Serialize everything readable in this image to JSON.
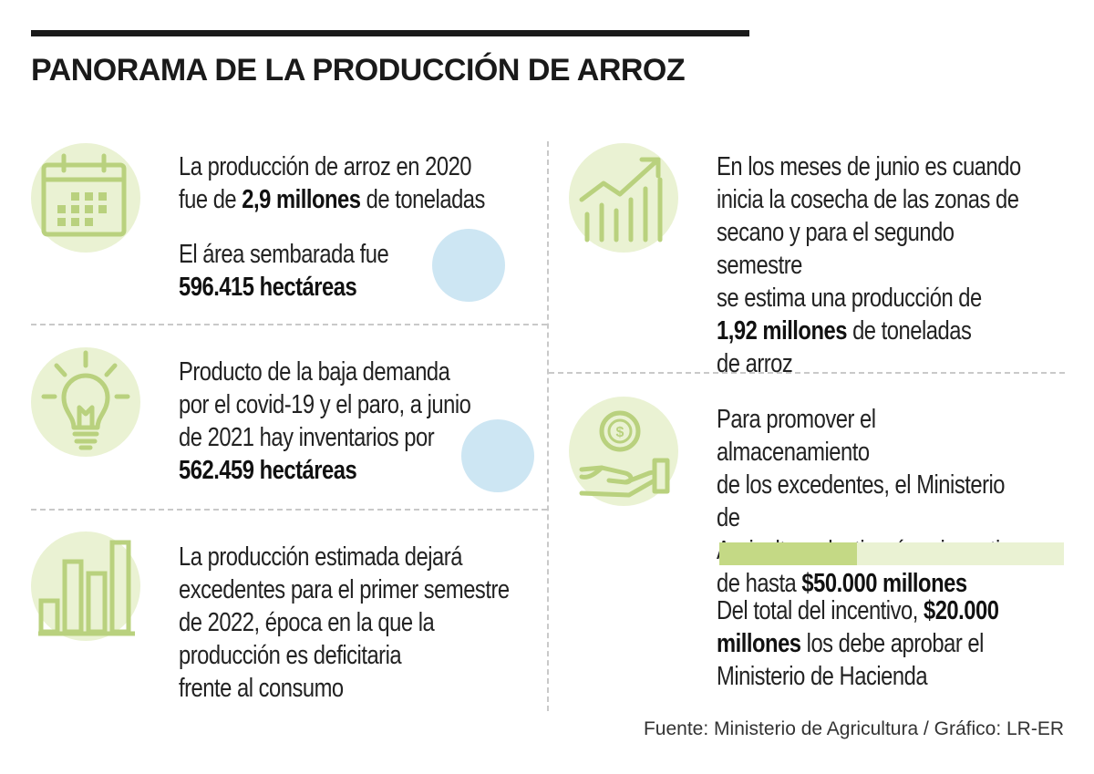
{
  "title": "PANORAMA DE LA PRODUCCIÓN DE ARROZ",
  "accent_colors": {
    "icon_background": "#eaf2d3",
    "icon_stroke": "#b9d17e",
    "blue_dot": "#cde6f3",
    "bar_fill": "#c4d985",
    "bar_track": "#eaf2d3"
  },
  "items": [
    {
      "icon": "calendar-icon",
      "line1": "La producción de arroz en 2020",
      "line2_pre": "fue de ",
      "line2_bold": "2,9 millones",
      "line2_post": " de toneladas",
      "line3": "El área sembarada fue",
      "line4_bold": "596.415 hectáreas"
    },
    {
      "icon": "lightbulb-icon",
      "line1": "Producto de la baja demanda",
      "line2": "por el covid-19 y el paro, a junio",
      "line3": "de 2021 hay inventarios por",
      "line4_bold": "562.459 hectáreas"
    },
    {
      "icon": "bar-chart-icon",
      "line1": "La producción estimada dejará",
      "line2": "excedentes para el primer semestre",
      "line3": "de 2022, época en la que la",
      "line4": "producción es deficitaria",
      "line5": "frente al consumo"
    },
    {
      "icon": "trend-up-chart-icon",
      "line1": "En los meses de junio es cuando",
      "line2": "inicia la cosecha de las zonas de",
      "line3": "secano y para el segundo semestre",
      "line4": "se estima una producción de",
      "line5_bold": "1,92 millones",
      "line5_post": " de toneladas",
      "line6": "de arroz"
    },
    {
      "icon": "hand-coin-icon",
      "line1": "Para promover el almacenamiento",
      "line2": "de los excedentes, el Ministerio de",
      "line3": "Agricultura destinará un incentivo",
      "line4_pre": "de hasta ",
      "line4_bold": "$50.000 millones",
      "incentive_share_pct": 40,
      "line5_pre": "Del total del incentivo, ",
      "line5_bold": "$20.000",
      "line6_bold": "millones",
      "line6_post": " los debe aprobar el",
      "line7": "Ministerio de Hacienda"
    }
  ],
  "source": "Fuente: Ministerio de Agricultura / Gráfico: LR-ER"
}
